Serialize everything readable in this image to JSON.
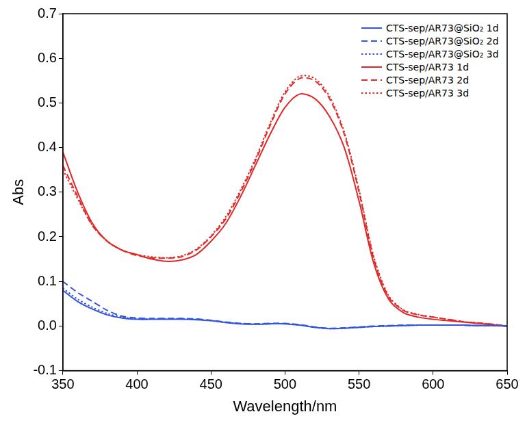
{
  "chart_data": {
    "type": "line",
    "x_label": "Wavelength/nm",
    "y_label": "Abs",
    "x": [
      350,
      360,
      370,
      380,
      390,
      400,
      410,
      420,
      430,
      440,
      450,
      460,
      470,
      480,
      490,
      500,
      510,
      520,
      530,
      540,
      550,
      560,
      570,
      580,
      590,
      600,
      610,
      620,
      630,
      640,
      650
    ],
    "xlim": [
      350,
      650
    ],
    "xticks": [
      350,
      400,
      450,
      500,
      550,
      600,
      650
    ],
    "ylim": [
      -0.1,
      0.7
    ],
    "yticks": [
      -0.1,
      {
        "value": 0,
        "label": "0.0"
      },
      0.1,
      0.2,
      0.3,
      0.4,
      0.5,
      0.6,
      0.7
    ],
    "grid": false,
    "legend": "top-right",
    "series": [
      {
        "name": "CTS-sep/AR73@SiO₂ 1d",
        "color": "#3355dd",
        "line_style": "solid",
        "values": [
          0.08,
          0.055,
          0.038,
          0.025,
          0.018,
          0.015,
          0.015,
          0.015,
          0.015,
          0.014,
          0.012,
          0.008,
          0.005,
          0.004,
          0.005,
          0.005,
          0.002,
          -0.003,
          -0.006,
          -0.005,
          -0.003,
          -0.001,
          0.0,
          0.001,
          0.002,
          0.002,
          0.002,
          0.002,
          0.001,
          0.001,
          0.0
        ]
      },
      {
        "name": "CTS-sep/AR73@SiO₂ 2d",
        "color": "#3355dd",
        "line_style": "dashed",
        "values": [
          0.1,
          0.075,
          0.055,
          0.035,
          0.022,
          0.018,
          0.017,
          0.017,
          0.017,
          0.016,
          0.013,
          0.009,
          0.006,
          0.005,
          0.006,
          0.006,
          0.003,
          -0.002,
          -0.005,
          -0.004,
          -0.002,
          0.0,
          0.001,
          0.002,
          0.002,
          0.002,
          0.002,
          0.002,
          0.001,
          0.001,
          0.0
        ]
      },
      {
        "name": "CTS-sep/AR73@SiO₂ 3d",
        "color": "#3355dd",
        "line_style": "dotted",
        "values": [
          0.085,
          0.06,
          0.042,
          0.028,
          0.02,
          0.016,
          0.016,
          0.016,
          0.016,
          0.015,
          0.012,
          0.008,
          0.005,
          0.004,
          0.005,
          0.005,
          0.002,
          -0.003,
          -0.006,
          -0.005,
          -0.003,
          -0.001,
          0.0,
          0.001,
          0.002,
          0.002,
          0.002,
          0.002,
          0.001,
          0.001,
          0.0
        ]
      },
      {
        "name": "CTS-sep/AR73 1d",
        "color": "#e02828",
        "line_style": "solid",
        "values": [
          0.39,
          0.3,
          0.23,
          0.19,
          0.17,
          0.16,
          0.15,
          0.145,
          0.148,
          0.16,
          0.19,
          0.23,
          0.29,
          0.36,
          0.43,
          0.49,
          0.52,
          0.51,
          0.47,
          0.4,
          0.28,
          0.14,
          0.06,
          0.03,
          0.02,
          0.015,
          0.012,
          0.009,
          0.006,
          0.003,
          0.0
        ]
      },
      {
        "name": "CTS-sep/AR73 2d",
        "color": "#e02828",
        "line_style": "dashed",
        "values": [
          0.36,
          0.29,
          0.225,
          0.19,
          0.17,
          0.158,
          0.153,
          0.152,
          0.155,
          0.17,
          0.2,
          0.24,
          0.3,
          0.37,
          0.45,
          0.52,
          0.555,
          0.55,
          0.51,
          0.43,
          0.3,
          0.15,
          0.065,
          0.035,
          0.025,
          0.02,
          0.015,
          0.01,
          0.007,
          0.004,
          0.0
        ]
      },
      {
        "name": "CTS-sep/AR73 3d",
        "color": "#e02828",
        "line_style": "dotted",
        "values": [
          0.35,
          0.285,
          0.225,
          0.19,
          0.17,
          0.16,
          0.155,
          0.153,
          0.157,
          0.172,
          0.202,
          0.245,
          0.305,
          0.375,
          0.455,
          0.525,
          0.56,
          0.555,
          0.515,
          0.435,
          0.305,
          0.155,
          0.068,
          0.036,
          0.026,
          0.02,
          0.015,
          0.01,
          0.007,
          0.004,
          0.0
        ]
      }
    ]
  }
}
